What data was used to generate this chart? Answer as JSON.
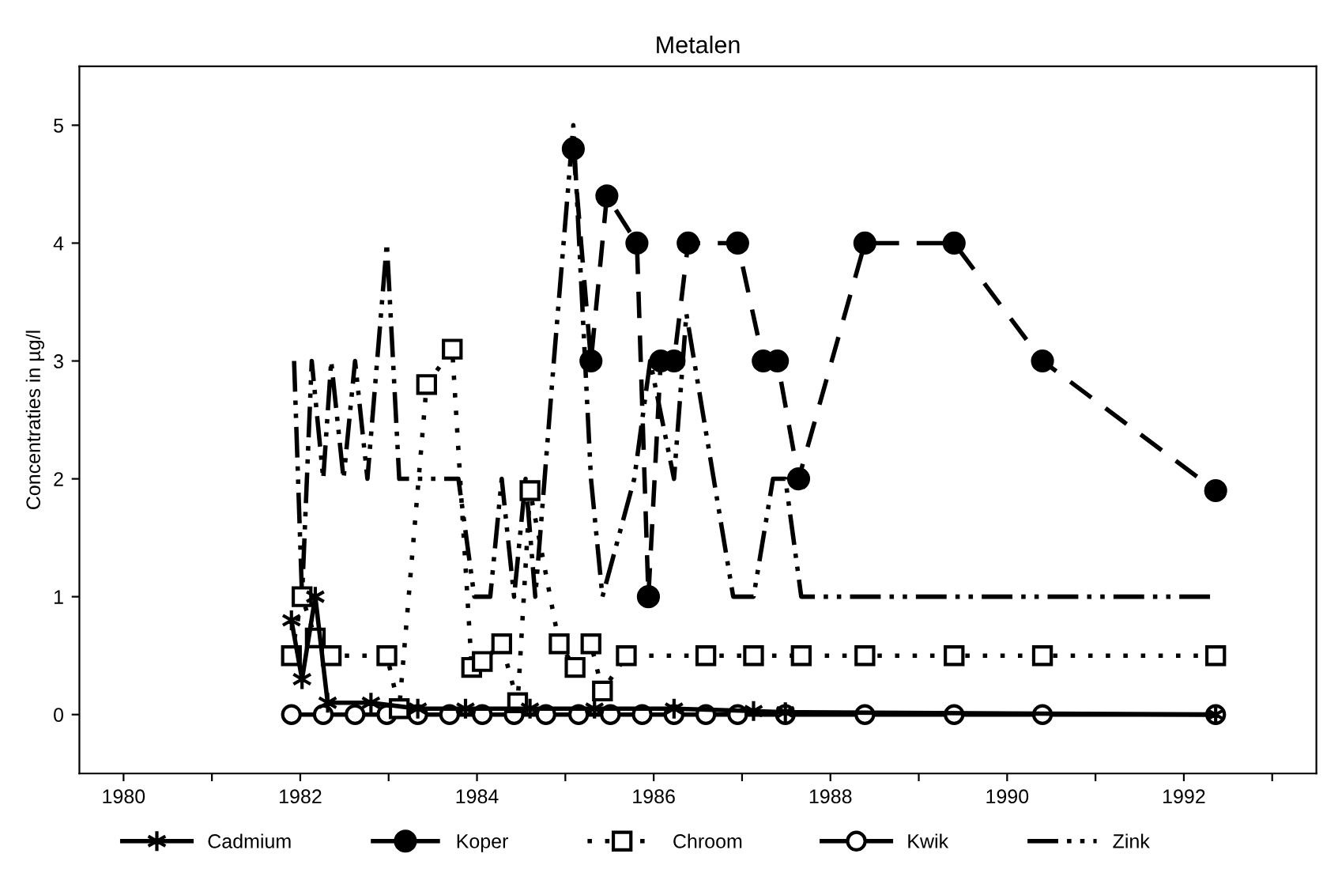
{
  "chart_data": {
    "type": "line",
    "title": "Metalen",
    "ylabel": "Concentraties in µg/l",
    "xlim": [
      1979.5,
      1993.5
    ],
    "xticks": [
      {
        "value": 1980,
        "label": "1980"
      },
      {
        "value": 1981,
        "label": null
      },
      {
        "value": 1982,
        "label": "1982"
      },
      {
        "value": 1983,
        "label": null
      },
      {
        "value": 1984,
        "label": "1984"
      },
      {
        "value": 1985,
        "label": null
      },
      {
        "value": 1986,
        "label": "1986"
      },
      {
        "value": 1987,
        "label": null
      },
      {
        "value": 1988,
        "label": "1988"
      },
      {
        "value": 1989,
        "label": null
      },
      {
        "value": 1990,
        "label": "1990"
      },
      {
        "value": 1991,
        "label": null
      },
      {
        "value": 1992,
        "label": "1992"
      },
      {
        "value": 1993,
        "label": null
      }
    ],
    "ylim": [
      -0.5,
      5.5
    ],
    "yticks": [
      0,
      1,
      2,
      3,
      4,
      5
    ],
    "legend": "bottom",
    "series": [
      {
        "name": "Cadmium",
        "color": "#000000",
        "marker": "cross",
        "line_style": "solid",
        "x": [
          1981.9,
          1982.02,
          1982.17,
          1982.31,
          1982.8,
          1983.33,
          1983.87,
          1984.6,
          1985.33,
          1986.23,
          1987.13,
          1987.49,
          1992.36
        ],
        "values": [
          0.8,
          0.3,
          1.0,
          0.1,
          0.1,
          0.05,
          0.05,
          0.05,
          0.05,
          0.05,
          0.03,
          0.02,
          0.0
        ]
      },
      {
        "name": "Koper",
        "color": "#000000",
        "marker": "circle",
        "line_style": "dashed",
        "x": [
          1985.09,
          1985.29,
          1985.47,
          1985.81,
          1985.94,
          1986.08,
          1986.23,
          1986.39,
          1986.95,
          1987.24,
          1987.4,
          1987.64,
          1988.39,
          1989.4,
          1990.4,
          1992.36
        ],
        "values": [
          4.8,
          3.0,
          4.4,
          4.0,
          1.0,
          3.0,
          3.0,
          4.0,
          4.0,
          3.0,
          3.0,
          2.0,
          4.0,
          4.0,
          3.0,
          1.9
        ]
      },
      {
        "name": "Chroom",
        "color": "#000000",
        "marker": "square",
        "line_style": "dotted",
        "x": [
          1981.9,
          1982.02,
          1982.17,
          1982.35,
          1982.98,
          1983.12,
          1983.43,
          1983.72,
          1983.94,
          1984.06,
          1984.28,
          1984.46,
          1984.6,
          1984.93,
          1985.11,
          1985.29,
          1985.42,
          1985.69,
          1986.59,
          1987.13,
          1987.67,
          1988.39,
          1989.4,
          1990.4,
          1992.36
        ],
        "values": [
          0.5,
          1.0,
          0.65,
          0.5,
          0.5,
          0.05,
          2.8,
          3.1,
          0.4,
          0.45,
          0.6,
          0.1,
          1.9,
          0.6,
          0.4,
          0.6,
          0.2,
          0.5,
          0.5,
          0.5,
          0.5,
          0.5,
          0.5,
          0.5,
          0.5
        ]
      },
      {
        "name": "Kwik",
        "color": "#000000",
        "marker": "circle_open",
        "line_style": "solid",
        "x": [
          1981.9,
          1982.26,
          1982.62,
          1982.98,
          1983.33,
          1983.69,
          1984.06,
          1984.42,
          1984.78,
          1985.15,
          1985.51,
          1985.87,
          1986.23,
          1986.59,
          1986.95,
          1987.49,
          1988.39,
          1989.4,
          1990.4,
          1992.36
        ],
        "values": [
          0,
          0,
          0,
          0,
          0,
          0,
          0,
          0,
          0,
          0,
          0,
          0,
          0,
          0,
          0,
          0,
          0,
          0,
          0,
          0
        ]
      },
      {
        "name": "Zink",
        "color": "#000000",
        "marker": "none",
        "line_style": "dashdot",
        "x": [
          1981.93,
          1982.02,
          1982.13,
          1982.26,
          1982.35,
          1982.49,
          1982.62,
          1982.76,
          1982.98,
          1983.12,
          1983.79,
          1983.97,
          1984.15,
          1984.28,
          1984.42,
          1984.55,
          1984.66,
          1984.87,
          1985.09,
          1985.29,
          1985.42,
          1985.78,
          1985.96,
          1986.23,
          1986.37,
          1986.9,
          1987.13,
          1987.35,
          1987.49,
          1987.67,
          1992.36
        ],
        "values": [
          3,
          1,
          3,
          2,
          3,
          2,
          3,
          2,
          4,
          2,
          2,
          1,
          1,
          2,
          1,
          2,
          1,
          3,
          5,
          2,
          1,
          2,
          3,
          2,
          3.4,
          1,
          1,
          2,
          2,
          1,
          1
        ]
      }
    ]
  }
}
